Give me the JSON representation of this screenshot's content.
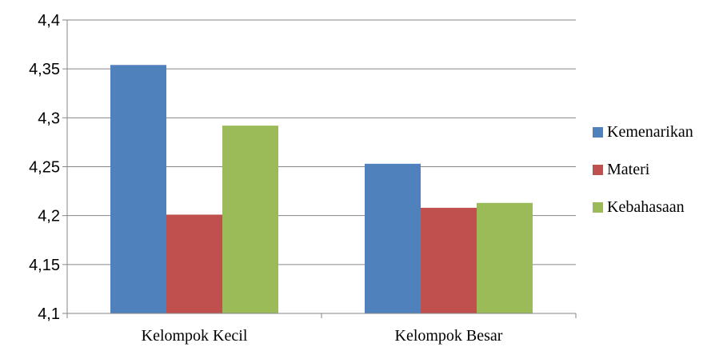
{
  "chart_data": {
    "type": "bar",
    "title": "",
    "xlabel": "",
    "ylabel": "",
    "categories": [
      "Kelompok Kecil",
      "Kelompok Besar"
    ],
    "series": [
      {
        "name": "Kemenarikan",
        "color": "#4f81bd",
        "values": [
          4.354,
          4.253
        ]
      },
      {
        "name": "Materi",
        "color": "#c0504d",
        "values": [
          4.201,
          4.208
        ]
      },
      {
        "name": "Kebahasaan",
        "color": "#9bbb59",
        "values": [
          4.292,
          4.213
        ]
      }
    ],
    "ylim": [
      4.1,
      4.4
    ],
    "yticks": [
      4.1,
      4.15,
      4.2,
      4.25,
      4.3,
      4.35,
      4.4
    ],
    "ytick_labels": [
      "4,1",
      "4,15",
      "4,2",
      "4,25",
      "4,3",
      "4,35",
      "4,4"
    ],
    "grid": true,
    "legend_position": "right"
  }
}
